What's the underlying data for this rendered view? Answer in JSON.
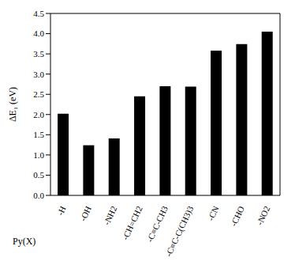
{
  "chart_data": {
    "type": "bar",
    "x_label": "Py(X)",
    "y_label": "ΔE₁ (eV)",
    "categories": [
      "-H",
      "-OH",
      "-NH2",
      "-CH=CH2",
      "-C≡C-CH3",
      "-C≡C-C(CH3)3",
      "-CN",
      "-CHO",
      "-NO2"
    ],
    "values": [
      2.02,
      1.24,
      1.41,
      2.45,
      2.7,
      2.69,
      3.58,
      3.74,
      4.05
    ],
    "color": "#000000",
    "ylim": [
      0,
      4.5
    ],
    "yticks": [
      {
        "value": 0,
        "label": "0.0"
      },
      0.5,
      {
        "value": 1,
        "label": "1.0"
      },
      1.5,
      {
        "value": 2,
        "label": "2.0"
      },
      2.5,
      {
        "value": 3,
        "label": "3.0"
      },
      3.5,
      {
        "value": 4,
        "label": "4.0"
      },
      4.5
    ],
    "grid": false
  }
}
